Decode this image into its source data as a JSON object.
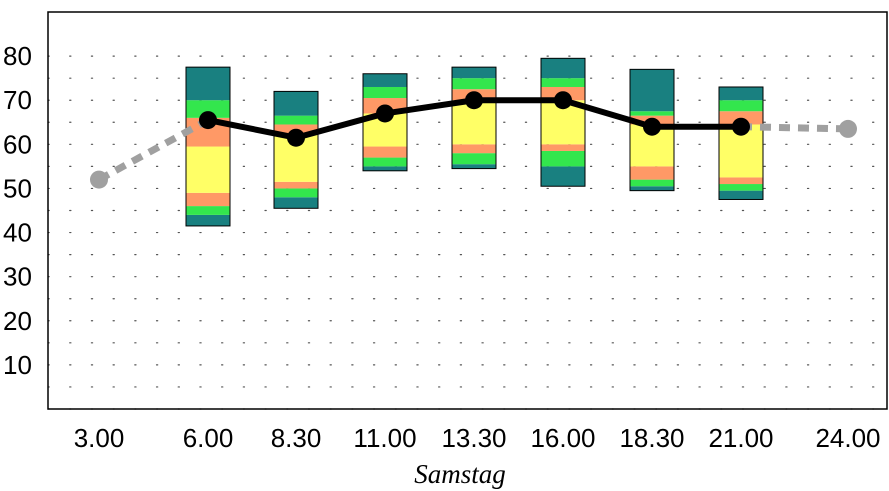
{
  "chart_data": {
    "type": "line",
    "xlabel": "Samstag",
    "ylabel": "",
    "ylim": [
      0,
      90
    ],
    "grid": "dotted",
    "x_ticks": [
      "3.00",
      "6.00",
      "8.30",
      "11.00",
      "13.30",
      "16.00",
      "18.30",
      "21.00",
      "24.00"
    ],
    "y_ticks": [
      "10",
      "20",
      "30",
      "40",
      "50",
      "60",
      "70",
      "80"
    ],
    "series": [
      {
        "style": "dashed-gray",
        "points": [
          {
            "x": "3.00",
            "y": 52
          },
          {
            "x": "6.00",
            "y": 65.5
          }
        ]
      },
      {
        "style": "solid-black",
        "points": [
          {
            "x": "6.00",
            "y": 65.5
          },
          {
            "x": "8.30",
            "y": 61.5
          },
          {
            "x": "11.00",
            "y": 67
          },
          {
            "x": "13.30",
            "y": 70
          },
          {
            "x": "16.00",
            "y": 70
          },
          {
            "x": "18.30",
            "y": 64
          },
          {
            "x": "21.00",
            "y": 64
          }
        ]
      },
      {
        "style": "dashed-gray",
        "points": [
          {
            "x": "21.00",
            "y": 64
          },
          {
            "x": "24.00",
            "y": 63.5
          }
        ]
      }
    ],
    "band_colors": {
      "teal": "#198080",
      "green": "#33e64d",
      "orange": "#ff9966",
      "yellow": "#ffff66"
    },
    "boxes": [
      {
        "x": "6.00",
        "bands": [
          {
            "from": 41.5,
            "to": 44,
            "color": "teal"
          },
          {
            "from": 44,
            "to": 46,
            "color": "green"
          },
          {
            "from": 46,
            "to": 49,
            "color": "orange"
          },
          {
            "from": 49,
            "to": 59.5,
            "color": "yellow"
          },
          {
            "from": 59.5,
            "to": 66,
            "color": "orange"
          },
          {
            "from": 66,
            "to": 70,
            "color": "green"
          },
          {
            "from": 70,
            "to": 77.5,
            "color": "teal"
          }
        ]
      },
      {
        "x": "8.30",
        "bands": [
          {
            "from": 45.5,
            "to": 48,
            "color": "teal"
          },
          {
            "from": 48,
            "to": 50,
            "color": "green"
          },
          {
            "from": 50,
            "to": 51.5,
            "color": "orange"
          },
          {
            "from": 51.5,
            "to": 62.5,
            "color": "yellow"
          },
          {
            "from": 62.5,
            "to": 64.5,
            "color": "orange"
          },
          {
            "from": 64.5,
            "to": 66.5,
            "color": "green"
          },
          {
            "from": 66.5,
            "to": 72,
            "color": "teal"
          }
        ]
      },
      {
        "x": "11.00",
        "bands": [
          {
            "from": 54,
            "to": 55,
            "color": "teal"
          },
          {
            "from": 55,
            "to": 57,
            "color": "green"
          },
          {
            "from": 57,
            "to": 59.5,
            "color": "orange"
          },
          {
            "from": 59.5,
            "to": 67,
            "color": "yellow"
          },
          {
            "from": 67,
            "to": 70.5,
            "color": "orange"
          },
          {
            "from": 70.5,
            "to": 73,
            "color": "green"
          },
          {
            "from": 73,
            "to": 76,
            "color": "teal"
          }
        ]
      },
      {
        "x": "13.30",
        "bands": [
          {
            "from": 54.5,
            "to": 55.5,
            "color": "teal"
          },
          {
            "from": 55.5,
            "to": 58,
            "color": "green"
          },
          {
            "from": 58,
            "to": 60,
            "color": "orange"
          },
          {
            "from": 60,
            "to": 70,
            "color": "yellow"
          },
          {
            "from": 70,
            "to": 72.5,
            "color": "orange"
          },
          {
            "from": 72.5,
            "to": 75,
            "color": "green"
          },
          {
            "from": 75,
            "to": 77.5,
            "color": "teal"
          }
        ]
      },
      {
        "x": "16.00",
        "bands": [
          {
            "from": 50.5,
            "to": 55,
            "color": "teal"
          },
          {
            "from": 55,
            "to": 58.5,
            "color": "green"
          },
          {
            "from": 58.5,
            "to": 60,
            "color": "orange"
          },
          {
            "from": 60,
            "to": 70,
            "color": "yellow"
          },
          {
            "from": 70,
            "to": 73,
            "color": "orange"
          },
          {
            "from": 73,
            "to": 75,
            "color": "green"
          },
          {
            "from": 75,
            "to": 79.5,
            "color": "teal"
          }
        ]
      },
      {
        "x": "18.30",
        "bands": [
          {
            "from": 49.5,
            "to": 50.5,
            "color": "teal"
          },
          {
            "from": 50.5,
            "to": 52,
            "color": "green"
          },
          {
            "from": 52,
            "to": 55,
            "color": "orange"
          },
          {
            "from": 55,
            "to": 64.5,
            "color": "yellow"
          },
          {
            "from": 64.5,
            "to": 66.5,
            "color": "orange"
          },
          {
            "from": 66.5,
            "to": 67.5,
            "color": "green"
          },
          {
            "from": 67.5,
            "to": 77,
            "color": "teal"
          }
        ]
      },
      {
        "x": "21.00",
        "bands": [
          {
            "from": 47.5,
            "to": 49.5,
            "color": "teal"
          },
          {
            "from": 49.5,
            "to": 51,
            "color": "green"
          },
          {
            "from": 51,
            "to": 52.5,
            "color": "orange"
          },
          {
            "from": 52.5,
            "to": 64.5,
            "color": "yellow"
          },
          {
            "from": 64.5,
            "to": 67.5,
            "color": "orange"
          },
          {
            "from": 67.5,
            "to": 70,
            "color": "green"
          },
          {
            "from": 70,
            "to": 73,
            "color": "teal"
          }
        ]
      }
    ]
  }
}
